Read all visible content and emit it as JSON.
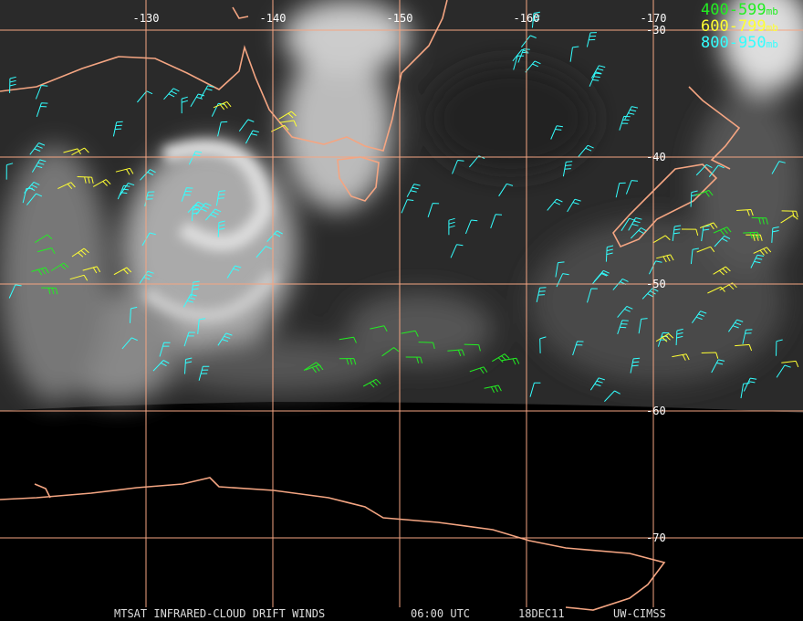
{
  "map": {
    "longitudes": [
      -130,
      -140,
      -150,
      -160,
      -170
    ],
    "latitudes": [
      -30,
      -40,
      -50,
      -60,
      -70
    ],
    "grid_color": "#f4a582",
    "legend": [
      {
        "range": "400-599",
        "unit": "mb",
        "color": "#22ee22"
      },
      {
        "range": "600-799",
        "unit": "mb",
        "color": "#ffff33"
      },
      {
        "range": "800-950",
        "unit": "mb",
        "color": "#33ffff"
      }
    ],
    "footer": {
      "product": "MTSAT INFRARED-CLOUD DRIFT WINDS",
      "time": "06:00 UTC",
      "date": "18DEC11",
      "source": "UW-CIMSS"
    }
  }
}
